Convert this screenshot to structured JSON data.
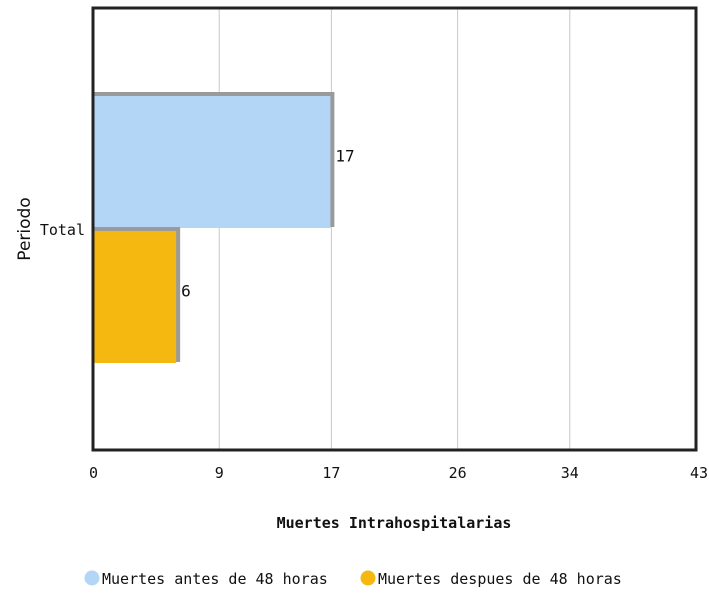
{
  "chart_data": {
    "type": "bar",
    "orientation": "horizontal",
    "categories": [
      "Total"
    ],
    "series": [
      {
        "name": "Muertes antes de 48 horas",
        "values": [
          17
        ],
        "color": "#b3d6f7"
      },
      {
        "name": "Muertes despues de 48 horas",
        "values": [
          6
        ],
        "color": "#f4b810"
      }
    ],
    "xlabel": "Muertes Intrahospitalarias",
    "ylabel": "Periodo",
    "xlim": [
      0,
      43
    ],
    "x_ticks": [
      "0",
      "9",
      "17",
      "26",
      "34",
      "43"
    ],
    "grid": true,
    "legend_position": "bottom"
  }
}
